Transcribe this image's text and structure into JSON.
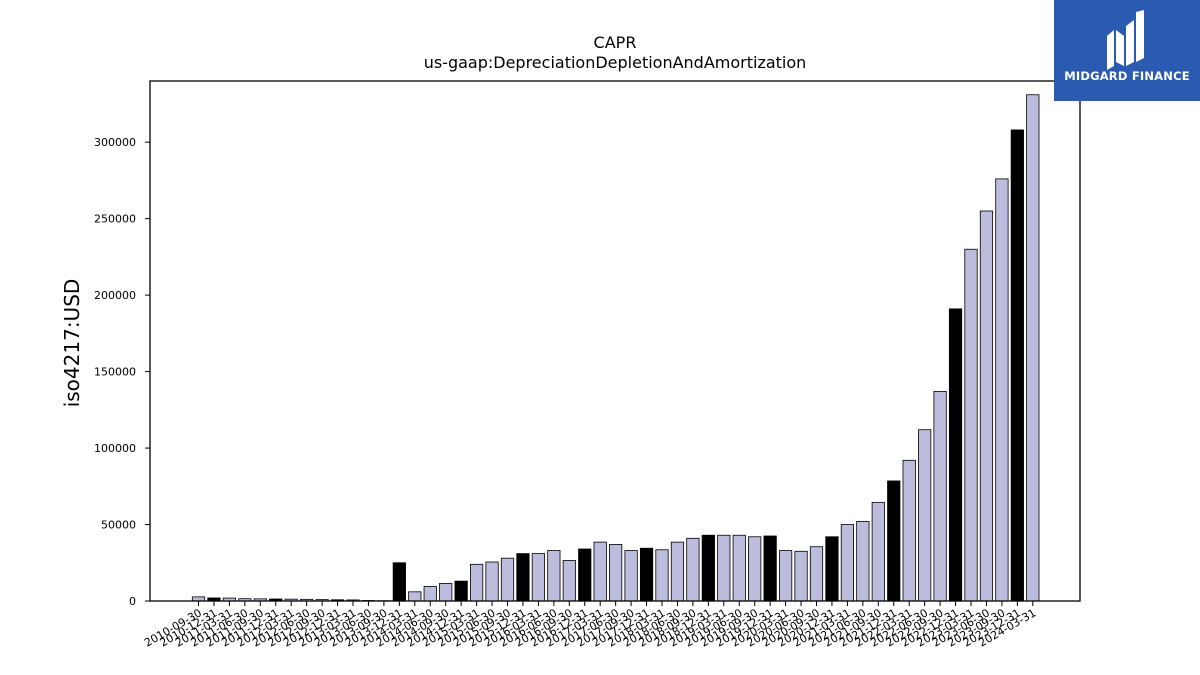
{
  "chart_data": {
    "type": "bar",
    "title": "CAPR",
    "subtitle": "us-gaap:DepreciationDepletionAndAmortization",
    "xlabel": "",
    "ylabel": "iso4217:USD",
    "ylim": [
      0,
      340000
    ],
    "yticks": [
      0,
      50000,
      100000,
      150000,
      200000,
      250000,
      300000
    ],
    "grid": false,
    "colors": {
      "quarter": "#bcbddc",
      "fiscal_year_end": "#000000",
      "edge": "#000000"
    },
    "categories": [
      "2010-09-30",
      "2010-12-31",
      "2011-03-31",
      "2011-06-30",
      "2011-09-30",
      "2011-12-31",
      "2012-03-31",
      "2012-06-30",
      "2012-09-30",
      "2012-12-31",
      "2013-03-31",
      "2013-06-30",
      "2013-09-30",
      "2013-12-31",
      "2014-03-31",
      "2014-06-30",
      "2014-09-30",
      "2014-12-31",
      "2015-03-31",
      "2015-06-30",
      "2015-09-30",
      "2015-12-31",
      "2016-03-31",
      "2016-06-30",
      "2016-09-30",
      "2016-12-31",
      "2017-03-31",
      "2017-06-30",
      "2017-09-30",
      "2017-12-31",
      "2018-03-31",
      "2018-06-30",
      "2018-09-30",
      "2018-12-31",
      "2019-03-31",
      "2019-06-30",
      "2019-09-30",
      "2019-12-31",
      "2020-03-31",
      "2020-06-30",
      "2020-09-30",
      "2020-12-31",
      "2021-03-31",
      "2021-06-30",
      "2021-09-30",
      "2021-12-31",
      "2022-03-31",
      "2022-06-30",
      "2022-09-30",
      "2022-12-31",
      "2023-03-31",
      "2023-06-30",
      "2023-09-30",
      "2023-12-31",
      "2024-03-31"
    ],
    "values": [
      2700,
      2000,
      1900,
      1500,
      1400,
      1300,
      1200,
      1100,
      900,
      800,
      700,
      300,
      200,
      25000,
      6000,
      9500,
      11500,
      13000,
      24000,
      25500,
      28000,
      31000,
      31000,
      33000,
      26500,
      34000,
      38500,
      37000,
      33000,
      34500,
      33500,
      38500,
      41000,
      43000,
      43000,
      43000,
      42000,
      42500,
      33000,
      32500,
      35500,
      42000,
      50000,
      52000,
      64500,
      78500,
      92000,
      112000,
      137000,
      191000,
      230000,
      255000,
      276000,
      308000,
      331000
    ],
    "highlight": [
      false,
      true,
      false,
      false,
      false,
      true,
      false,
      false,
      false,
      true,
      false,
      false,
      false,
      true,
      false,
      false,
      false,
      true,
      false,
      false,
      false,
      true,
      false,
      false,
      false,
      true,
      false,
      false,
      false,
      true,
      false,
      false,
      false,
      true,
      false,
      false,
      false,
      true,
      false,
      false,
      false,
      true,
      false,
      false,
      false,
      true,
      false,
      false,
      false,
      true,
      false,
      false,
      false,
      true,
      false
    ]
  },
  "logo": {
    "text": "MIDGARD FINANCE"
  }
}
